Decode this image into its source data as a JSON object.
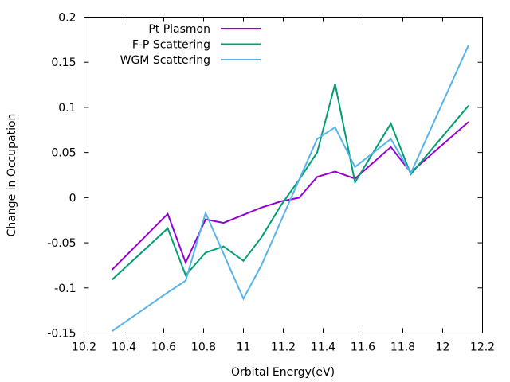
{
  "chart_data": {
    "type": "line",
    "xlabel": "Orbital Energy(eV)",
    "ylabel": "Change in Occupation",
    "xlim": [
      10.2,
      12.2
    ],
    "ylim": [
      -0.15,
      0.2
    ],
    "xticks": [
      10.2,
      10.4,
      10.6,
      10.8,
      11.0,
      11.2,
      11.4,
      11.6,
      11.8,
      12.0,
      12.2
    ],
    "xtick_labels": [
      "10.2",
      "10.4",
      "10.6",
      "10.8",
      "11",
      "11.2",
      "11.4",
      "11.6",
      "11.8",
      "12",
      "12.2"
    ],
    "yticks": [
      -0.15,
      -0.1,
      -0.05,
      0,
      0.05,
      0.1,
      0.15,
      0.2
    ],
    "ytick_labels": [
      "-0.15",
      "-0.1",
      "-0.05",
      "0",
      "0.05",
      "0.1",
      "0.15",
      "0.2"
    ],
    "grid": false,
    "legend_position": "top-left",
    "series": [
      {
        "name": "Pt Plasmon",
        "color": "#9400d3",
        "x": [
          10.34,
          10.62,
          10.71,
          10.81,
          10.9,
          11.09,
          11.19,
          11.28,
          11.37,
          11.46,
          11.56,
          11.74,
          11.84,
          12.13
        ],
        "y": [
          -0.08,
          -0.018,
          -0.072,
          -0.024,
          -0.028,
          -0.011,
          -0.004,
          0.0,
          0.023,
          0.029,
          0.021,
          0.056,
          0.028,
          0.084
        ]
      },
      {
        "name": "F-P Scattering",
        "color": "#009e73",
        "x": [
          10.34,
          10.62,
          10.71,
          10.81,
          10.9,
          11.0,
          11.09,
          11.19,
          11.28,
          11.37,
          11.46,
          11.56,
          11.74,
          11.84,
          12.13
        ],
        "y": [
          -0.091,
          -0.034,
          -0.086,
          -0.061,
          -0.054,
          -0.07,
          -0.044,
          -0.008,
          0.02,
          0.05,
          0.126,
          0.017,
          0.082,
          0.026,
          0.102
        ]
      },
      {
        "name": "WGM Scattering",
        "color": "#56b4e9",
        "x": [
          10.34,
          10.62,
          10.71,
          10.81,
          11.0,
          11.09,
          11.28,
          11.37,
          11.46,
          11.56,
          11.74,
          11.84,
          12.13
        ],
        "y": [
          -0.148,
          -0.105,
          -0.092,
          -0.017,
          -0.112,
          -0.075,
          0.02,
          0.065,
          0.078,
          0.034,
          0.065,
          0.027,
          0.169
        ]
      }
    ]
  }
}
